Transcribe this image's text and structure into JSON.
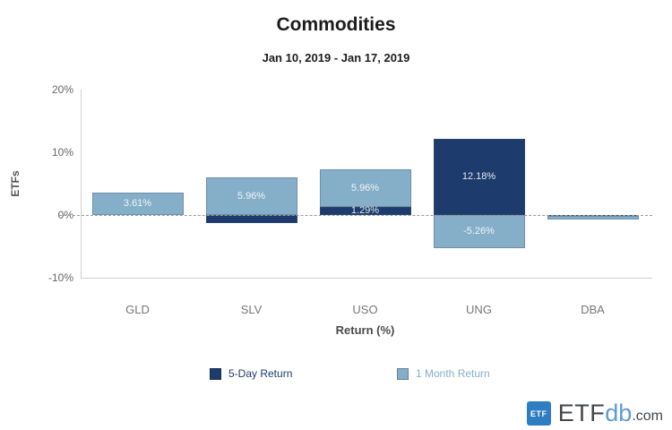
{
  "header": {
    "title": "Commodities",
    "subtitle": "Jan 10, 2019 - Jan 17, 2019"
  },
  "chart_data": {
    "type": "bar",
    "stacking": "normal",
    "title": "Commodities",
    "subtitle": "Jan 10, 2019 - Jan 17, 2019",
    "xlabel": "Return (%)",
    "ylabel": "ETFs",
    "categories": [
      "GLD",
      "SLV",
      "USO",
      "UNG",
      "DBA"
    ],
    "series": [
      {
        "name": "5-Day Return",
        "color": "#1d3c6d",
        "values": [
          0,
          -1.35,
          1.29,
          12.18,
          -0.2
        ],
        "labels": [
          "",
          "",
          "1.29%",
          "12.18%",
          ""
        ]
      },
      {
        "name": "1 Month Return",
        "color": "#85aec9",
        "values": [
          3.61,
          5.96,
          5.96,
          -5.26,
          -0.5
        ],
        "labels": [
          "3.61%",
          "5.96%",
          "5.96%",
          "-5.26%",
          ""
        ]
      }
    ],
    "ylim": [
      -10,
      20
    ],
    "yticks": [
      {
        "value": 20,
        "label": "20%"
      },
      {
        "value": 10,
        "label": "10%"
      },
      {
        "value": 0,
        "label": "0%"
      },
      {
        "value": -10,
        "label": "-10%"
      }
    ],
    "zero_line": "dashed",
    "grid": false,
    "legend_position": "bottom"
  },
  "legend": {
    "items": [
      {
        "label": "5-Day Return",
        "color": "#1d3c6d"
      },
      {
        "label": "1 Month Return",
        "color": "#85aec9"
      }
    ]
  },
  "logo": {
    "badge": "ETF",
    "brand_etf": "ETF",
    "brand_db": "db",
    "brand_com": ".com"
  }
}
